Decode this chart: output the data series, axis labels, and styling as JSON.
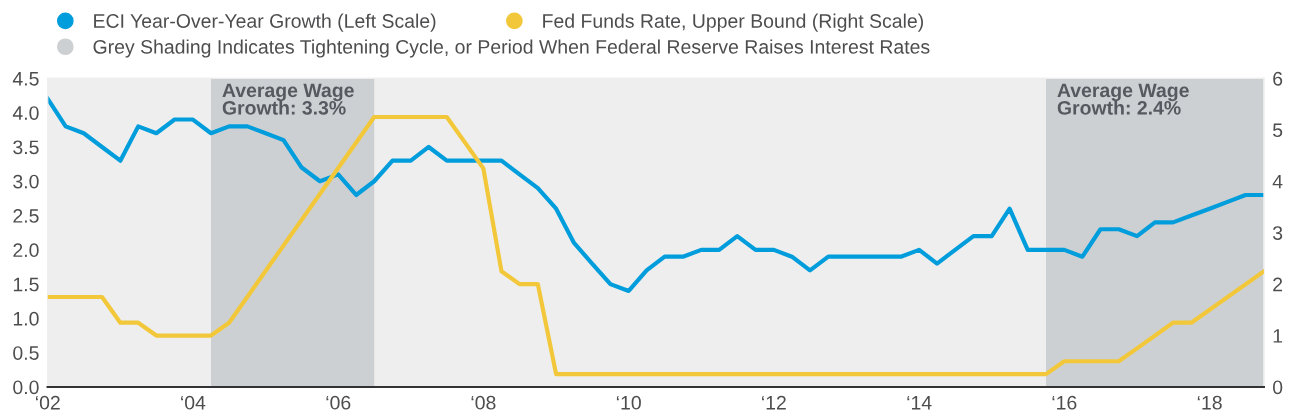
{
  "chart_data": {
    "type": "line",
    "legend": "top left",
    "series": [
      {
        "name": "ECI Year-Over-Year Growth (Left Scale)",
        "color": "#009ddc",
        "axis": "y",
        "x": [
          "2002-01",
          "2002-04",
          "2002-07",
          "2002-10",
          "2003-01",
          "2003-04",
          "2003-07",
          "2003-10",
          "2004-01",
          "2004-04",
          "2004-07",
          "2004-10",
          "2005-01",
          "2005-04",
          "2005-07",
          "2005-10",
          "2006-01",
          "2006-04",
          "2006-07",
          "2006-10",
          "2007-01",
          "2007-04",
          "2007-07",
          "2007-10",
          "2008-01",
          "2008-04",
          "2008-07",
          "2008-10",
          "2009-01",
          "2009-04",
          "2009-07",
          "2009-10",
          "2010-01",
          "2010-04",
          "2010-07",
          "2010-10",
          "2011-01",
          "2011-04",
          "2011-07",
          "2011-10",
          "2012-01",
          "2012-04",
          "2012-07",
          "2012-10",
          "2013-01",
          "2013-04",
          "2013-07",
          "2013-10",
          "2014-01",
          "2014-04",
          "2014-07",
          "2014-10",
          "2015-01",
          "2015-04",
          "2015-07",
          "2015-10",
          "2016-01",
          "2016-04",
          "2016-07",
          "2016-10",
          "2017-01",
          "2017-04",
          "2017-07",
          "2017-10",
          "2018-01",
          "2018-04",
          "2018-07",
          "2018-10"
        ],
        "values": [
          4.2,
          3.8,
          3.7,
          3.5,
          3.3,
          3.8,
          3.7,
          3.9,
          3.9,
          3.7,
          3.8,
          3.8,
          3.7,
          3.6,
          3.2,
          3.0,
          3.1,
          2.8,
          3.0,
          3.3,
          3.3,
          3.5,
          3.3,
          3.3,
          3.3,
          3.3,
          3.1,
          2.9,
          2.6,
          2.1,
          1.8,
          1.5,
          1.4,
          1.7,
          1.9,
          1.9,
          2.0,
          2.0,
          2.2,
          2.0,
          2.0,
          1.9,
          1.7,
          1.9,
          1.9,
          1.9,
          1.9,
          1.9,
          2.0,
          1.8,
          2.0,
          2.2,
          2.2,
          2.6,
          2.0,
          2.0,
          2.0,
          1.9,
          2.3,
          2.3,
          2.2,
          2.4,
          2.4,
          2.5,
          2.6,
          2.7,
          2.8,
          2.8
        ]
      },
      {
        "name": "Fed Funds Rate, Upper Bound (Right Scale)",
        "color": "#f2c83a",
        "axis": "y2",
        "x": [
          "2002-01",
          "2002-10",
          "2003-01",
          "2003-04",
          "2003-07",
          "2004-04",
          "2004-07",
          "2006-07",
          "2007-07",
          "2008-01",
          "2008-04",
          "2008-07",
          "2008-10",
          "2009-01",
          "2015-10",
          "2016-01",
          "2016-10",
          "2017-01",
          "2017-07",
          "2017-10",
          "2018-10"
        ],
        "values": [
          1.75,
          1.75,
          1.25,
          1.25,
          1.0,
          1.0,
          1.25,
          5.25,
          5.25,
          4.25,
          2.25,
          2.0,
          2.0,
          0.25,
          0.25,
          0.5,
          0.5,
          0.75,
          1.25,
          1.25,
          2.25
        ]
      }
    ],
    "xlim": [
      "2002-01",
      "2018-10"
    ],
    "xticks": [
      {
        "value": "2002",
        "label": "‘02"
      },
      {
        "value": "2004",
        "label": "‘04"
      },
      {
        "value": "2006",
        "label": "‘06"
      },
      {
        "value": "2008",
        "label": "‘08"
      },
      {
        "value": "2010",
        "label": "‘10"
      },
      {
        "value": "2012",
        "label": "‘12"
      },
      {
        "value": "2014",
        "label": "‘14"
      },
      {
        "value": "2016",
        "label": "‘16"
      },
      {
        "value": "2018",
        "label": "‘18"
      }
    ],
    "ylim": [
      0,
      4.5
    ],
    "yticks": [
      {
        "value": 0,
        "label": "0.0"
      },
      {
        "value": 0.5,
        "label": "0.5"
      },
      {
        "value": 1,
        "label": "1.0"
      },
      {
        "value": 1.5,
        "label": "1.5"
      },
      {
        "value": 2,
        "label": "2.0"
      },
      {
        "value": 2.5,
        "label": "2.5"
      },
      {
        "value": 3,
        "label": "3.0"
      },
      {
        "value": 3.5,
        "label": "3.5"
      },
      {
        "value": 4,
        "label": "4.0"
      },
      {
        "value": 4.5,
        "label": "4.5"
      }
    ],
    "y2lim": [
      0,
      6
    ],
    "y2ticks": [
      0,
      1,
      2,
      3,
      4,
      5,
      6
    ],
    "bands": [
      {
        "axis": "x",
        "from": "2004-04",
        "to": "2006-07",
        "label": "Average Wage Growth: 3.3%",
        "color": "#cdd0d3"
      },
      {
        "axis": "x",
        "from": "2015-10",
        "to": "2018-10",
        "label": "Average Wage Growth: 2.4%",
        "color": "#cdd0d3"
      }
    ],
    "annotations": [
      "Grey Shading Indicates Tightening Cycle, or Period When Federal Reserve Raises Interest Rates"
    ],
    "grid": false
  }
}
